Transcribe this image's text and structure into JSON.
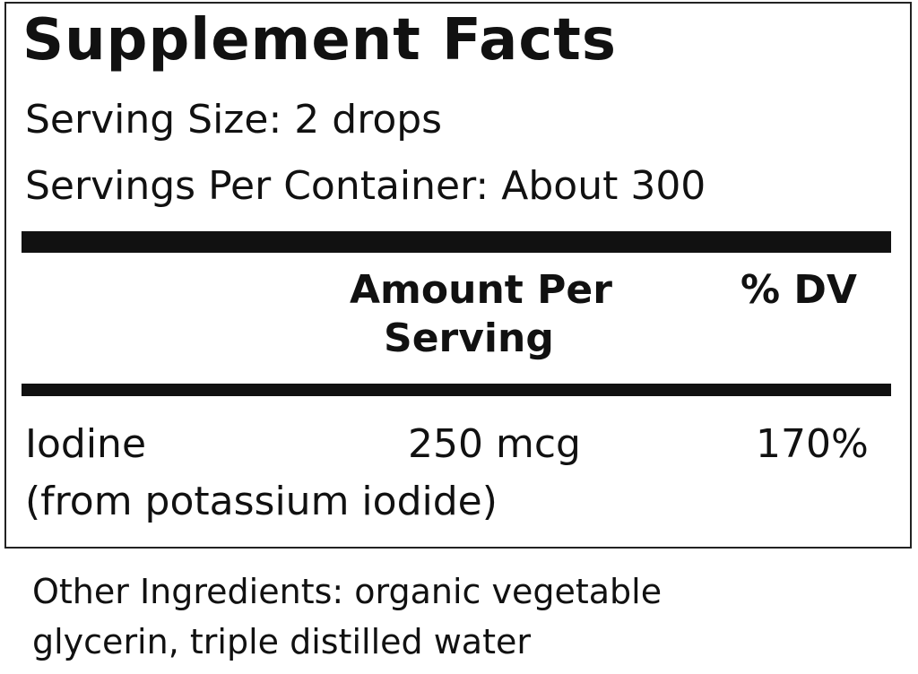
{
  "title": "Supplement Facts",
  "serving_size": "Serving Size: 2 drops",
  "servings_per_container": "Servings Per Container: About 300",
  "header": {
    "amount_line1": "Amount Per",
    "amount_line2": "Serving",
    "dv": "% DV"
  },
  "rows": [
    {
      "name": "Iodine",
      "source": "(from potassium iodide)",
      "amount": "250 mcg",
      "dv": "170%"
    }
  ],
  "other_ingredients_line1": "Other Ingredients: organic vegetable",
  "other_ingredients_line2": "glycerin, triple distilled water"
}
